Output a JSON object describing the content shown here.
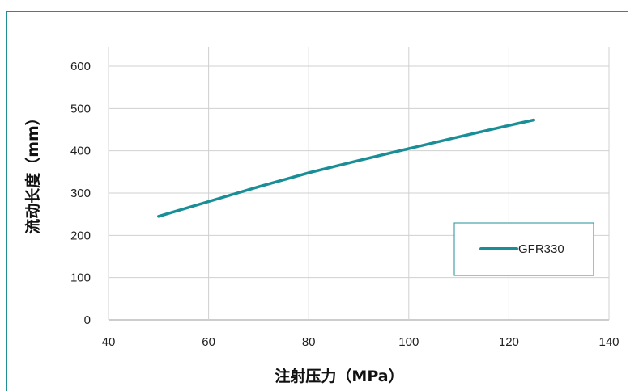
{
  "chart_data": {
    "type": "line",
    "xlabel": "注射压力（MPa）",
    "ylabel": "流动长度（mm）",
    "xlim": [
      40,
      140
    ],
    "ylim": [
      0,
      650
    ],
    "xticks": [
      "40",
      "60",
      "80",
      "100",
      "120",
      "140"
    ],
    "yticks": [
      "0",
      "100",
      "200",
      "300",
      "400",
      "500",
      "600"
    ],
    "grid": true,
    "legend_position": "right",
    "series": [
      {
        "name": "GFR330",
        "color": "#1a8e96",
        "x": [
          50,
          60,
          70,
          80,
          90,
          100,
          110,
          120,
          125
        ],
        "y": [
          245,
          280,
          315,
          348,
          377,
          405,
          433,
          460,
          473
        ]
      }
    ]
  }
}
